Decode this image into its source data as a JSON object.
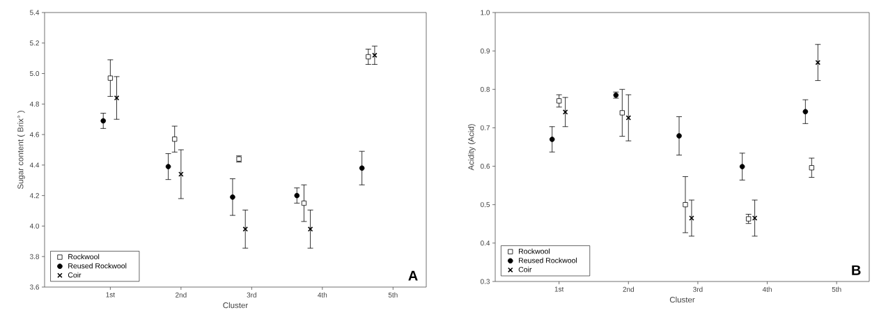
{
  "chart_data": [
    {
      "type": "scatter",
      "xlabel": "Cluster",
      "ylabel": "Sugar content ( Brix° )",
      "annotations": [
        "A"
      ],
      "legend": "bottom left",
      "xlim": [
        0.07,
        5.47
      ],
      "ylim": [
        3.6,
        5.4
      ],
      "xticks": [
        {
          "value": 1,
          "label": "1st"
        },
        {
          "value": 2,
          "label": "2nd"
        },
        {
          "value": 3,
          "label": "3rd"
        },
        {
          "value": 4,
          "label": "4th"
        },
        {
          "value": 5,
          "label": "5th"
        }
      ],
      "yticks": [
        {
          "value": 3.6,
          "label": "3.6"
        },
        {
          "value": 3.8,
          "label": "3.8"
        },
        {
          "value": 4.0,
          "label": "4.0"
        },
        {
          "value": 4.2,
          "label": "4.2"
        },
        {
          "value": 4.4,
          "label": "4.4"
        },
        {
          "value": 4.6,
          "label": "4.6"
        },
        {
          "value": 4.8,
          "label": "4.8"
        },
        {
          "value": 5.0,
          "label": "5.0"
        },
        {
          "value": 5.2,
          "label": "5.2"
        },
        {
          "value": 5.4,
          "label": "5.4"
        }
      ],
      "series": [
        {
          "name": "Rockwool",
          "color": "#000000",
          "marker": "square",
          "x": [
            1.0,
            1.91,
            2.82,
            3.74,
            4.65
          ],
          "values": [
            4.97,
            4.57,
            4.44,
            4.15,
            5.11
          ],
          "errors": [
            0.12,
            0.085,
            0.02,
            0.12,
            0.05
          ]
        },
        {
          "name": "Reused Rockwool",
          "color": "#000000",
          "marker": "circle",
          "x": [
            0.9,
            1.82,
            2.73,
            3.64,
            4.56
          ],
          "values": [
            4.69,
            4.39,
            4.19,
            4.2,
            4.38
          ],
          "errors": [
            0.05,
            0.085,
            0.12,
            0.05,
            0.11
          ]
        },
        {
          "name": "Coir",
          "color": "#000000",
          "marker": "cross",
          "x": [
            1.09,
            2.0,
            2.91,
            3.83,
            4.74
          ],
          "values": [
            4.84,
            4.34,
            3.98,
            3.98,
            5.12
          ],
          "errors": [
            0.14,
            0.16,
            0.125,
            0.125,
            0.06
          ]
        }
      ]
    },
    {
      "type": "scatter",
      "xlabel": "Cluster",
      "ylabel": "Acidity (Acid)",
      "annotations": [
        "B"
      ],
      "legend": "bottom left",
      "xlim": [
        0.08,
        5.47
      ],
      "ylim": [
        0.3,
        1.0
      ],
      "xticks": [
        {
          "value": 1,
          "label": "1st"
        },
        {
          "value": 2,
          "label": "2nd"
        },
        {
          "value": 3,
          "label": "3rd"
        },
        {
          "value": 4,
          "label": "4th"
        },
        {
          "value": 5,
          "label": "5th"
        }
      ],
      "yticks": [
        {
          "value": 0.3,
          "label": "0.3"
        },
        {
          "value": 0.4,
          "label": "0.4"
        },
        {
          "value": 0.5,
          "label": "0.5"
        },
        {
          "value": 0.6,
          "label": "0.6"
        },
        {
          "value": 0.7,
          "label": "0.7"
        },
        {
          "value": 0.8,
          "label": "0.8"
        },
        {
          "value": 0.9,
          "label": "0.9"
        },
        {
          "value": 1.0,
          "label": "1.0"
        }
      ],
      "series": [
        {
          "name": "Rockwool",
          "color": "#000000",
          "marker": "square",
          "x": [
            1.0,
            1.91,
            2.82,
            3.73,
            4.64
          ],
          "values": [
            0.77,
            0.739,
            0.5,
            0.463,
            0.596
          ],
          "errors": [
            0.016,
            0.061,
            0.073,
            0.012,
            0.025
          ]
        },
        {
          "name": "Reused Rockwool",
          "color": "#000000",
          "marker": "circle",
          "x": [
            0.9,
            1.82,
            2.73,
            3.64,
            4.55
          ],
          "values": [
            0.67,
            0.785,
            0.679,
            0.599,
            0.742
          ],
          "errors": [
            0.033,
            0.008,
            0.05,
            0.035,
            0.031
          ]
        },
        {
          "name": "Coir",
          "color": "#000000",
          "marker": "cross",
          "x": [
            1.09,
            2.0,
            2.91,
            3.82,
            4.73
          ],
          "values": [
            0.741,
            0.726,
            0.465,
            0.465,
            0.87
          ],
          "errors": [
            0.038,
            0.06,
            0.047,
            0.047,
            0.047
          ]
        }
      ]
    }
  ]
}
